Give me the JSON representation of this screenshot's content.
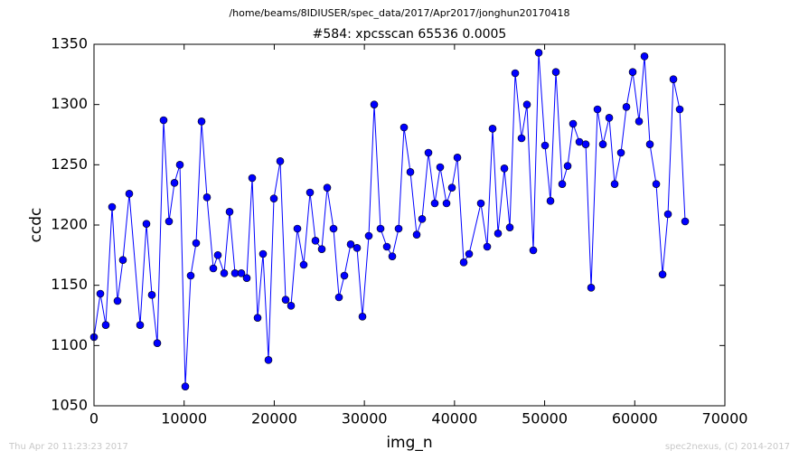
{
  "chart_data": {
    "type": "line",
    "suptitle": "/home/beams/8IDIUSER/spec_data/2017/Apr2017/jonghun20170418",
    "title": "#584: xpcsscan 65536 0.0005",
    "x_label": "img_n",
    "y_label": "ccdc",
    "footer_left": "Thu Apr 20 11:23:23 2017",
    "footer_right": "spec2nexus, (C) 2014-2017",
    "color": "#0000ff",
    "marker": "circle",
    "xlim": [
      0,
      70000
    ],
    "xticks": [
      0,
      10000,
      20000,
      30000,
      40000,
      50000,
      60000,
      70000
    ],
    "ylim": [
      1050,
      1350
    ],
    "yticks": [
      1050,
      1100,
      1150,
      1200,
      1250,
      1300,
      1350
    ],
    "x": [
      0,
      702,
      1304,
      2006,
      2608,
      3209,
      3911,
      5115,
      5817,
      6419,
      7020,
      7722,
      8324,
      8926,
      9528,
      10129,
      10731,
      11333,
      11935,
      12536,
      13238,
      13740,
      14442,
      15044,
      15645,
      16347,
      16949,
      17551,
      18153,
      18754,
      19356,
      19958,
      20660,
      21262,
      21864,
      22565,
      23267,
      23969,
      24571,
      25273,
      25875,
      26577,
      27179,
      27780,
      28482,
      29184,
      29786,
      30488,
      31090,
      31792,
      32494,
      33096,
      33798,
      34400,
      35102,
      35804,
      36406,
      37107,
      37809,
      38411,
      39113,
      39715,
      40317,
      41019,
      41621,
      42924,
      43626,
      44228,
      44830,
      45532,
      46134,
      46735,
      47437,
      48039,
      48741,
      49343,
      50045,
      50647,
      51249,
      51951,
      52553,
      53155,
      53856,
      54558,
      55160,
      55862,
      56464,
      57166,
      57768,
      58470,
      59071,
      59773,
      60475,
      61077,
      61679,
      62381,
      63083,
      63685,
      64286,
      64988,
      65590
    ],
    "values": [
      1107,
      1143,
      1117,
      1215,
      1137,
      1171,
      1226,
      1117,
      1201,
      1142,
      1102,
      1287,
      1203,
      1235,
      1250,
      1066,
      1158,
      1185,
      1286,
      1223,
      1164,
      1175,
      1160,
      1211,
      1160,
      1160,
      1156,
      1239,
      1123,
      1176,
      1088,
      1222,
      1253,
      1138,
      1133,
      1197,
      1167,
      1227,
      1187,
      1180,
      1231,
      1197,
      1140,
      1158,
      1184,
      1181,
      1124,
      1191,
      1300,
      1197,
      1182,
      1174,
      1197,
      1281,
      1244,
      1192,
      1205,
      1260,
      1218,
      1248,
      1218,
      1231,
      1256,
      1169,
      1176,
      1218,
      1182,
      1280,
      1193,
      1247,
      1198,
      1326,
      1272,
      1300,
      1179,
      1343,
      1266,
      1220,
      1327,
      1234,
      1249,
      1284,
      1269,
      1267,
      1148,
      1296,
      1267,
      1289,
      1234,
      1260,
      1298,
      1327,
      1286,
      1340,
      1267,
      1234,
      1159,
      1209,
      1321,
      1296,
      1203
    ]
  }
}
